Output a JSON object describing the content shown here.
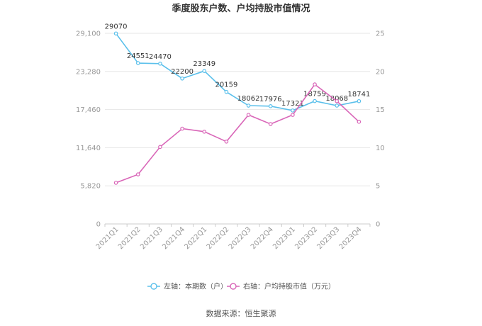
{
  "chart_data": {
    "type": "line",
    "title": "季度股东户数、户均持股市值情况",
    "categories": [
      "2021Q1",
      "2021Q2",
      "2021Q3",
      "2021Q4",
      "2022Q1",
      "2022Q2",
      "2022Q3",
      "2022Q4",
      "2023Q1",
      "2023Q2",
      "2023Q3",
      "2023Q4"
    ],
    "left_axis": {
      "min": 0,
      "max": 29100,
      "ticks": [
        0,
        5820,
        11640,
        17460,
        23280,
        29100
      ],
      "tick_labels": [
        "0",
        "5,820",
        "11,640",
        "17,460",
        "23,280",
        "29,100"
      ]
    },
    "right_axis": {
      "min": 0,
      "max": 25,
      "ticks": [
        0,
        5,
        10,
        15,
        20,
        25
      ],
      "tick_labels": [
        "0",
        "5",
        "10",
        "15",
        "20",
        "25"
      ]
    },
    "series": [
      {
        "name": "左轴：本期数（户）",
        "axis": "left",
        "color": "#5bc0eb",
        "values": [
          29070,
          24551,
          24470,
          22200,
          23349,
          20159,
          18062,
          17976,
          17321,
          18759,
          18068,
          18741
        ],
        "labels": [
          "29070",
          "24551",
          "24470",
          "22200",
          "23349",
          "20159",
          "18062",
          "17976",
          "17321",
          "18759",
          "18068",
          "18741"
        ]
      },
      {
        "name": "右轴：户均持股市值（万元）",
        "axis": "right",
        "color": "#d966b8",
        "values": [
          5.4,
          6.5,
          10.1,
          12.5,
          12.1,
          10.8,
          14.3,
          13.1,
          14.3,
          18.3,
          16.1,
          13.4
        ]
      }
    ],
    "grid": true,
    "legend_position": "bottom"
  },
  "source": "数据来源：恒生聚源"
}
